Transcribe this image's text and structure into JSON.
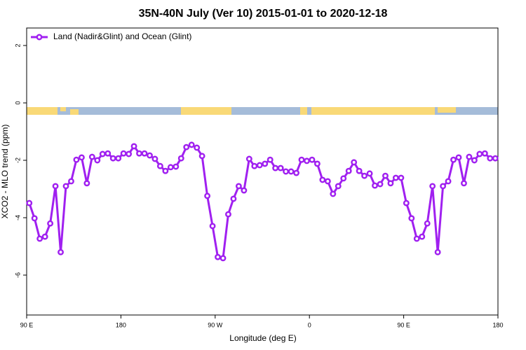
{
  "chart_data": {
    "type": "line",
    "title": "35N-40N July (Ver 10)   2015-01-01 to 2020-12-18",
    "x_label": "Longitude (deg E)",
    "y_label": "XCO2 - MLO trend (ppm)",
    "xlim": [
      90,
      540
    ],
    "ylim": [
      2.61,
      -7.39
    ],
    "xticks": [
      {
        "value": 90,
        "label": "90 E"
      },
      180,
      {
        "value": 270,
        "label": "90 W"
      },
      {
        "value": 360,
        "label": "0"
      },
      {
        "value": 450,
        "label": "90 E"
      },
      {
        "value": 540,
        "label": "180"
      }
    ],
    "yticks": [
      2,
      0,
      -2,
      -4,
      -6
    ],
    "legend": "top-left",
    "x": [
      92.5,
      97.5,
      102.5,
      107.5,
      112.5,
      117.5,
      122.5,
      127.5,
      132.5,
      137.5,
      142.5,
      147.5,
      152.5,
      157.5,
      162.5,
      167.5,
      172.5,
      177.5,
      182.5,
      187.5,
      192.5,
      197.5,
      202.5,
      207.5,
      212.5,
      217.5,
      222.5,
      227.5,
      232.5,
      237.5,
      242.5,
      247.5,
      252.5,
      257.5,
      262.5,
      267.5,
      272.5,
      277.5,
      282.5,
      287.5,
      292.5,
      297.5,
      302.5,
      307.5,
      312.5,
      317.5,
      322.5,
      327.5,
      332.5,
      337.5,
      342.5,
      347.5,
      352.5,
      357.5,
      362.5,
      367.5,
      372.5,
      377.5,
      382.5,
      387.5,
      392.5,
      397.5,
      402.5,
      407.5,
      412.5,
      417.5,
      422.5,
      427.5,
      432.5,
      437.5,
      442.5,
      447.5,
      452.5,
      457.5,
      462.5,
      467.5,
      472.5,
      477.5,
      482.5,
      487.5,
      492.5,
      497.5,
      502.5,
      507.5,
      512.5,
      517.5,
      522.5,
      527.5,
      532.5,
      537.5
    ],
    "series": [
      {
        "name": "Land (Nadir&Glint) and Ocean (Glint)",
        "color": "#a020f0",
        "values": [
          -3.49,
          -4.02,
          -4.73,
          -4.66,
          -4.2,
          -2.9,
          -5.2,
          -2.9,
          -2.73,
          -1.98,
          -1.9,
          -2.8,
          -1.88,
          -2.0,
          -1.78,
          -1.76,
          -1.93,
          -1.93,
          -1.76,
          -1.78,
          -1.51,
          -1.76,
          -1.76,
          -1.83,
          -1.95,
          -2.2,
          -2.37,
          -2.24,
          -2.22,
          -1.93,
          -1.54,
          -1.46,
          -1.56,
          -1.85,
          -3.24,
          -4.29,
          -5.37,
          -5.41,
          -3.88,
          -3.34,
          -2.9,
          -3.05,
          -1.95,
          -2.2,
          -2.17,
          -2.12,
          -1.98,
          -2.27,
          -2.27,
          -2.39,
          -2.39,
          -2.44,
          -1.98,
          -2.02,
          -1.98,
          -2.12,
          -2.68,
          -2.73,
          -3.17,
          -2.9,
          -2.63,
          -2.37,
          -2.07,
          -2.37,
          -2.54,
          -2.46,
          -2.88,
          -2.83,
          -2.54,
          -2.8,
          -2.61,
          -2.61,
          -3.49,
          -4.02,
          -4.73,
          -4.66,
          -4.2,
          -2.9,
          -5.2,
          -2.9,
          -2.73,
          -1.98,
          -1.9,
          -2.8,
          -1.88,
          -2.0,
          -1.78,
          -1.76,
          -1.93,
          -1.93
        ]
      }
    ]
  }
}
